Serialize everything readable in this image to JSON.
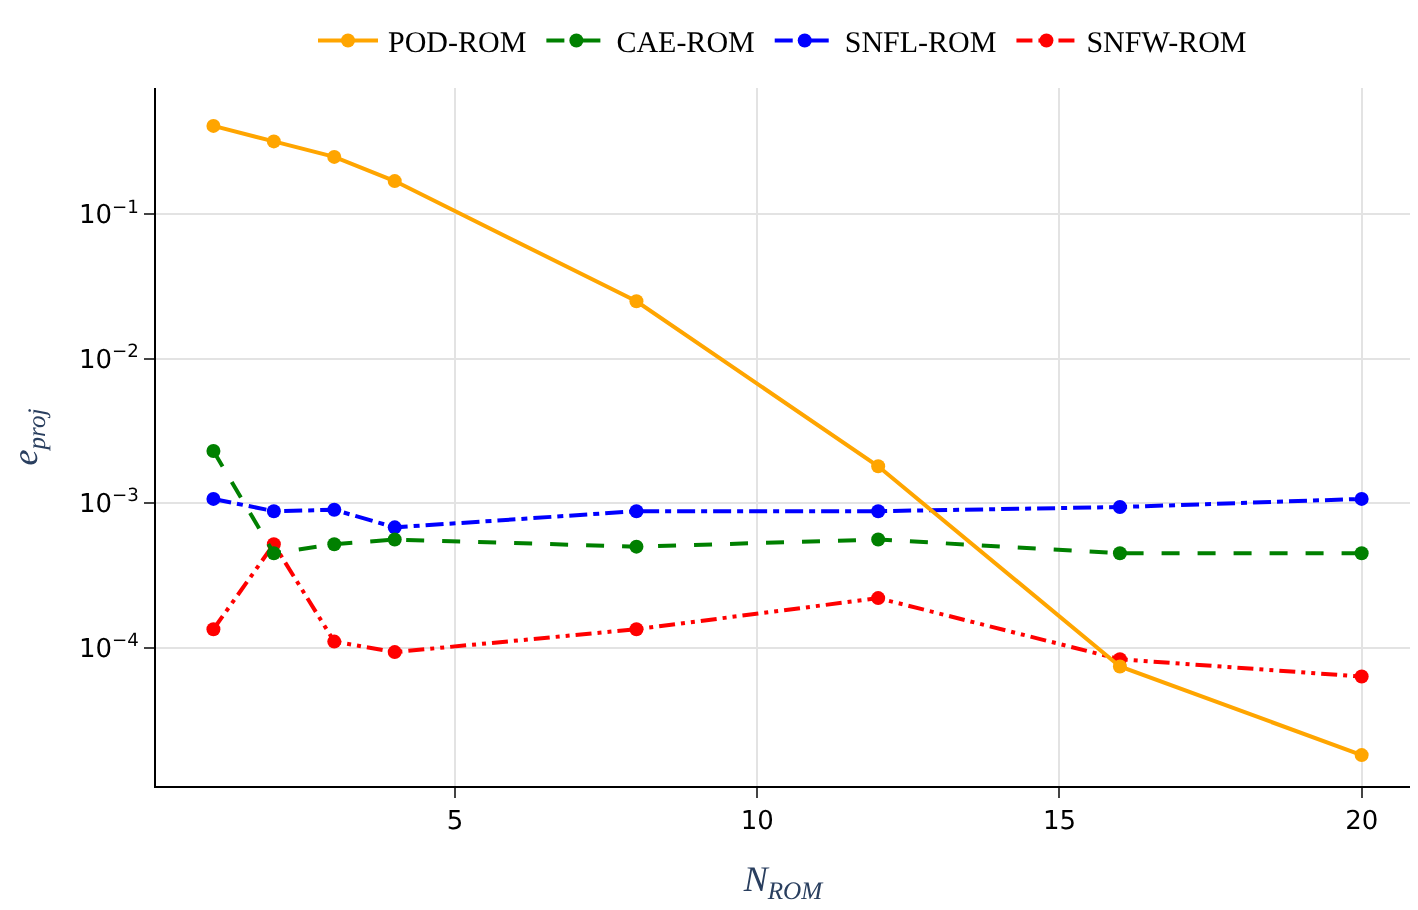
{
  "chart_data": {
    "type": "line",
    "xlabel": "N$_{ROM}$",
    "ylabel": "e$_{proj}$",
    "log": "y",
    "grid": true,
    "legend": "top",
    "marker": "circle",
    "x": [
      1,
      2,
      3,
      4,
      8,
      12,
      16,
      20
    ],
    "xlim": [
      0.05,
      20.8
    ],
    "xticks": [
      5,
      10,
      15,
      20
    ],
    "ylim": [
      1.1e-05,
      0.75
    ],
    "yticks": [
      {
        "value": 0.0001,
        "label": "10$^{−4}$"
      },
      {
        "value": 0.001,
        "label": "10$^{−3}$"
      },
      {
        "value": 0.01,
        "label": "10$^{−2}$"
      },
      {
        "value": 0.1,
        "label": "10$^{−1}$"
      }
    ],
    "series": [
      {
        "name": "POD-ROM",
        "color": "#ffa500",
        "line_style": "solid",
        "values": [
          0.41,
          0.32,
          0.25,
          0.17,
          0.025,
          0.0018,
          7.4e-05,
          1.8e-05
        ]
      },
      {
        "name": "CAE-ROM",
        "color": "#008000",
        "line_style": "dashed",
        "values": [
          0.0023,
          0.00045,
          0.00052,
          0.00056,
          0.0005,
          0.00056,
          0.00045,
          0.00045
        ]
      },
      {
        "name": "SNFL-ROM",
        "color": "#0000ff",
        "line_style": "dashdot",
        "values": [
          0.00107,
          0.00088,
          0.0009,
          0.00068,
          0.00088,
          0.00088,
          0.00094,
          0.00107
        ]
      },
      {
        "name": "SNFW-ROM",
        "color": "#ff0000",
        "line_style": "dashdotdot",
        "values": [
          0.000134,
          0.00052,
          0.00011,
          9.3e-05,
          0.000134,
          0.00022,
          8.3e-05,
          6.3e-05
        ]
      }
    ]
  }
}
